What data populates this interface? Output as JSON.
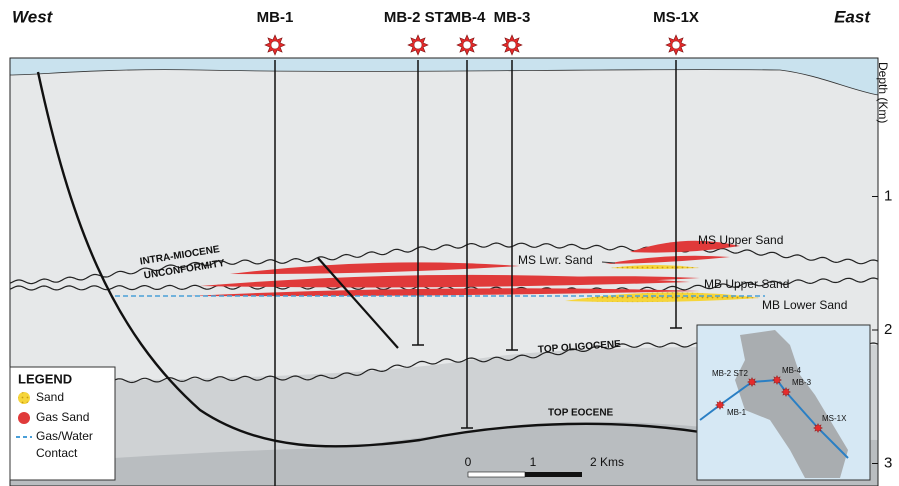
{
  "header": {
    "west": "West",
    "east": "East"
  },
  "wells": [
    {
      "label": "MB-1"
    },
    {
      "label": "MB-2 ST2"
    },
    {
      "label": "MB-4"
    },
    {
      "label": "MB-3"
    },
    {
      "label": "MS-1X"
    }
  ],
  "depth_axis": {
    "label": "Depth (Km)",
    "ticks": [
      1,
      2,
      3
    ]
  },
  "horizons": {
    "unconformity": [
      "INTRA-MIOCENE",
      "UNCONFORMITY"
    ],
    "top_oligocene": "TOP OLIGOCENE",
    "top_eocene": "TOP EOCENE"
  },
  "reservoirs": {
    "ms_upper": "MS Upper Sand",
    "ms_lower": "MS Lwr. Sand",
    "mb_upper": "MB Upper Sand",
    "mb_lower": "MB Lower Sand"
  },
  "legend": {
    "title": "LEGEND",
    "items": [
      {
        "lines": [
          "Sand"
        ]
      },
      {
        "lines": [
          "Gas Sand"
        ]
      },
      {
        "lines": [
          "Gas/Water",
          "Contact"
        ]
      }
    ]
  },
  "scale_bar": {
    "labels": [
      "0",
      "1",
      "2 Kms"
    ]
  },
  "inset": {
    "wells": [
      "MB-2 ST2",
      "MB-4",
      "MB-3",
      "MB-1",
      "MS-1X"
    ]
  }
}
